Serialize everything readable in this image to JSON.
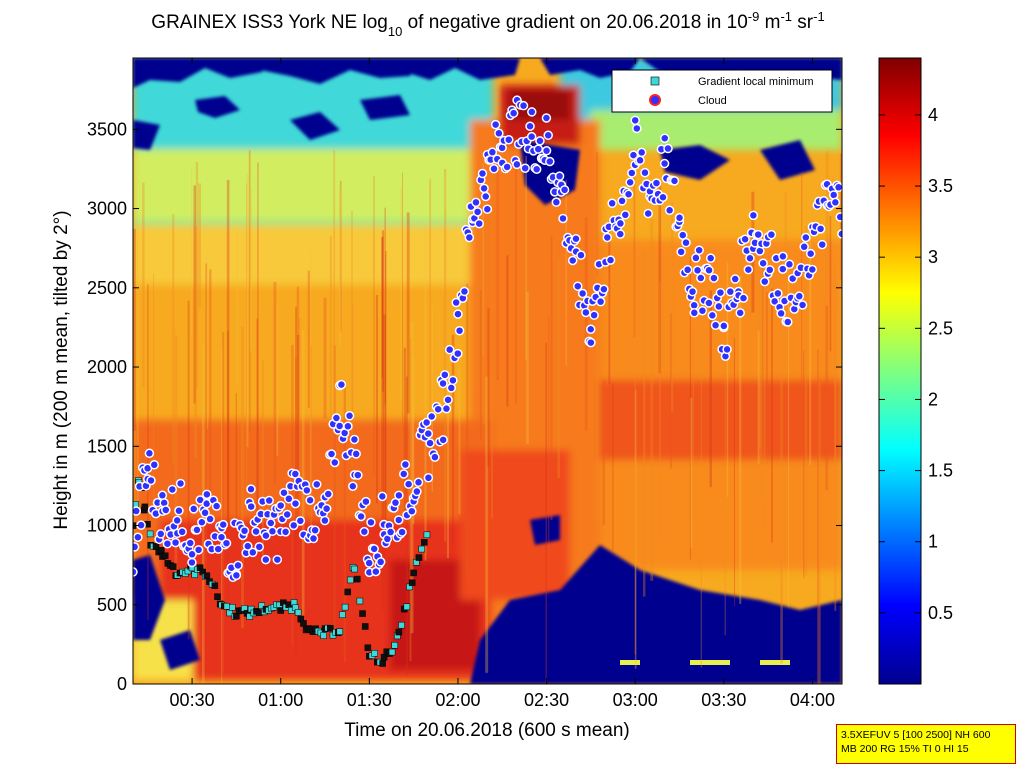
{
  "chart_data": {
    "type": "heatmap",
    "title": {
      "prefix": "GRAINEX ISS3 York NE log",
      "sub": "10",
      "mid": " of negative gradient on 20.06.2018 in 10",
      "sup1": "-9",
      "mid2": " m",
      "sup2": "-1",
      "mid3": " sr",
      "sup3": "-1"
    },
    "xlabel": "Time on 20.06.2018 (600 s mean)",
    "ylabel": "Height in m (200 m mean, tilted by 2°)",
    "xlim": [
      "00:10",
      "04:10"
    ],
    "ylim": [
      0,
      3950
    ],
    "x_ticks": [
      "00:30",
      "01:00",
      "01:30",
      "02:00",
      "02:30",
      "03:00",
      "03:30",
      "04:00"
    ],
    "y_ticks": [
      "0",
      "500",
      "1000",
      "1500",
      "2000",
      "2500",
      "3000",
      "3500"
    ],
    "colorbar": {
      "colormap": "jet",
      "range": [
        0,
        4.4
      ],
      "ticks": [
        "0.5",
        "1",
        "1.5",
        "2",
        "2.5",
        "3",
        "3.5",
        "4"
      ]
    },
    "legend": {
      "position": "top-right",
      "entries": [
        {
          "label": "Gradient local minimum",
          "marker": "square",
          "color": "#3fd8d8"
        },
        {
          "label": "Cloud",
          "marker": "circle",
          "color": "#3030ff",
          "edge": "#ff2020"
        }
      ]
    },
    "cloud_trace": [
      {
        "t": "00:10",
        "h": 860
      },
      {
        "t": "00:15",
        "h": 1350
      },
      {
        "t": "00:20",
        "h": 1050
      },
      {
        "t": "00:25",
        "h": 1100
      },
      {
        "t": "00:30",
        "h": 950
      },
      {
        "t": "00:35",
        "h": 1000
      },
      {
        "t": "00:40",
        "h": 900
      },
      {
        "t": "00:45",
        "h": 850
      },
      {
        "t": "00:50",
        "h": 1050
      },
      {
        "t": "00:55",
        "h": 950
      },
      {
        "t": "01:00",
        "h": 1000
      },
      {
        "t": "01:05",
        "h": 1200
      },
      {
        "t": "01:10",
        "h": 1100
      },
      {
        "t": "01:15",
        "h": 1000
      },
      {
        "t": "01:20",
        "h": 1800
      },
      {
        "t": "01:25",
        "h": 1400
      },
      {
        "t": "01:30",
        "h": 850
      },
      {
        "t": "01:35",
        "h": 1000
      },
      {
        "t": "01:40",
        "h": 1100
      },
      {
        "t": "01:45",
        "h": 1300
      },
      {
        "t": "01:50",
        "h": 1500
      },
      {
        "t": "01:55",
        "h": 1750
      },
      {
        "t": "02:00",
        "h": 2300
      },
      {
        "t": "02:05",
        "h": 3000
      },
      {
        "t": "02:10",
        "h": 3200
      },
      {
        "t": "02:15",
        "h": 3450
      },
      {
        "t": "02:20",
        "h": 3480
      },
      {
        "t": "02:25",
        "h": 3450
      },
      {
        "t": "02:30",
        "h": 3400
      },
      {
        "t": "02:35",
        "h": 3100
      },
      {
        "t": "02:40",
        "h": 2600
      },
      {
        "t": "02:45",
        "h": 2300
      },
      {
        "t": "02:50",
        "h": 2700
      },
      {
        "t": "02:55",
        "h": 3000
      },
      {
        "t": "03:00",
        "h": 3350
      },
      {
        "t": "03:05",
        "h": 3100
      },
      {
        "t": "03:10",
        "h": 3250
      },
      {
        "t": "03:15",
        "h": 2900
      },
      {
        "t": "03:20",
        "h": 2500
      },
      {
        "t": "03:25",
        "h": 2600
      },
      {
        "t": "03:30",
        "h": 2200
      },
      {
        "t": "03:35",
        "h": 2500
      },
      {
        "t": "03:40",
        "h": 2900
      },
      {
        "t": "03:45",
        "h": 2700
      },
      {
        "t": "03:50",
        "h": 2500
      },
      {
        "t": "03:55",
        "h": 2400
      },
      {
        "t": "04:00",
        "h": 2800
      },
      {
        "t": "04:05",
        "h": 3000
      },
      {
        "t": "04:10",
        "h": 3050
      }
    ],
    "gradient_minimum_trace": [
      {
        "t": "00:10",
        "h": 1000
      },
      {
        "t": "00:12",
        "h": 1300
      },
      {
        "t": "00:14",
        "h": 1100
      },
      {
        "t": "00:16",
        "h": 900
      },
      {
        "t": "00:20",
        "h": 820
      },
      {
        "t": "00:25",
        "h": 700
      },
      {
        "t": "00:30",
        "h": 720
      },
      {
        "t": "00:35",
        "h": 700
      },
      {
        "t": "00:40",
        "h": 500
      },
      {
        "t": "00:45",
        "h": 450
      },
      {
        "t": "00:50",
        "h": 450
      },
      {
        "t": "00:55",
        "h": 480
      },
      {
        "t": "01:00",
        "h": 480
      },
      {
        "t": "01:05",
        "h": 500
      },
      {
        "t": "01:10",
        "h": 320
      },
      {
        "t": "01:15",
        "h": 320
      },
      {
        "t": "01:20",
        "h": 350
      },
      {
        "t": "01:25",
        "h": 750
      },
      {
        "t": "01:30",
        "h": 180
      },
      {
        "t": "01:35",
        "h": 150
      },
      {
        "t": "01:40",
        "h": 300
      },
      {
        "t": "01:45",
        "h": 700
      },
      {
        "t": "01:50",
        "h": 950
      }
    ]
  },
  "info_box": {
    "line1": "3.5XEFUV 5 [100 2500] NH 600",
    "line2": "MB 200 RG 15% TI 0 HI 15"
  }
}
